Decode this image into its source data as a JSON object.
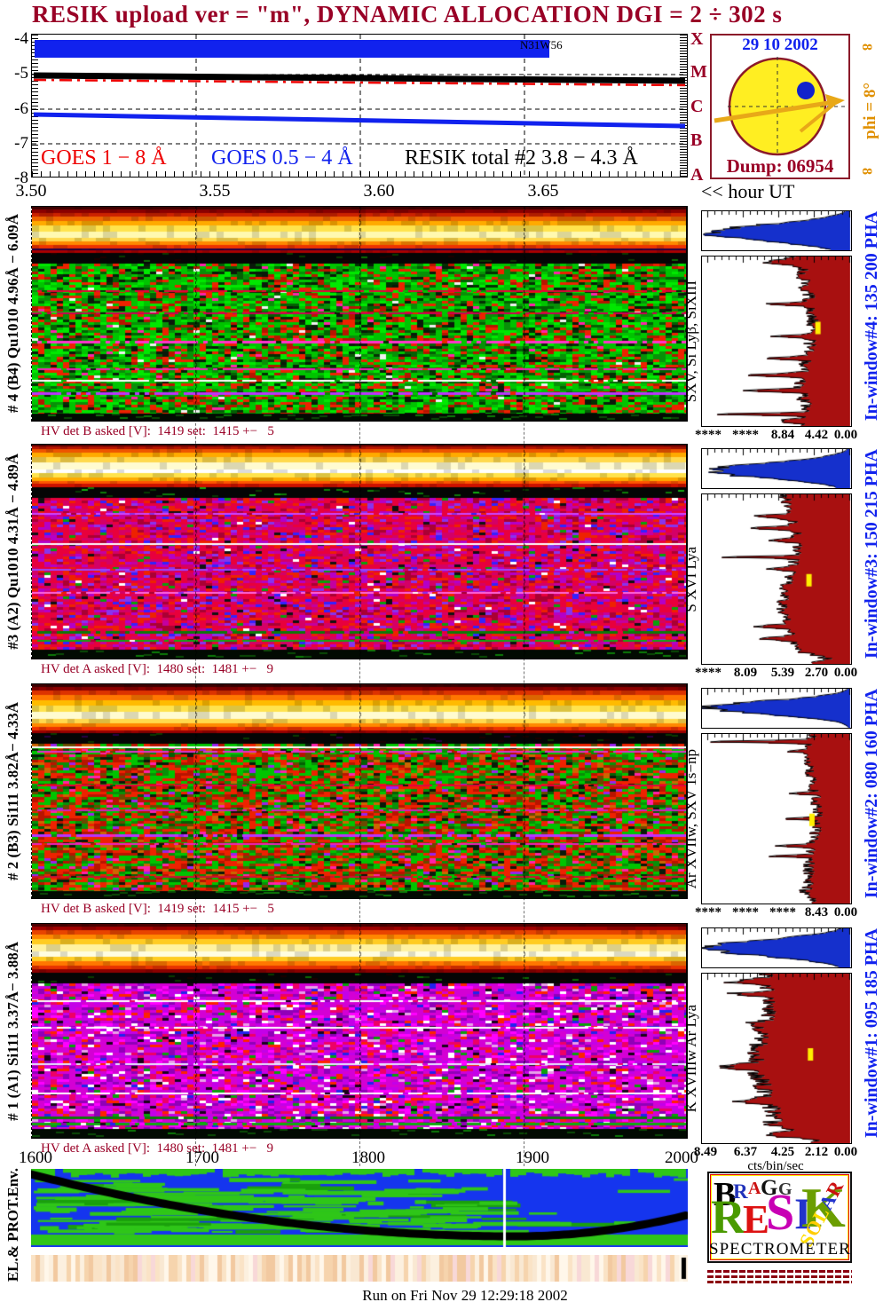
{
  "title": "RESIK upload ver = \"m\", DYNAMIC ALLOCATION  DGI =   2 ÷ 302 s",
  "colors": {
    "title_red": "#990026",
    "label_blue": "#1122ee",
    "hist_red": "#a81010",
    "hist_blue": "#1530cc",
    "accent_orange": "#e09000",
    "sun_yellow": "#ffee22"
  },
  "goes": {
    "y_labels": [
      "-4",
      "-5",
      "-6",
      "-7",
      "-8"
    ],
    "class_labels": [
      "X",
      "M",
      "C",
      "B",
      "A"
    ],
    "flare_label": "N31W56",
    "legend": [
      {
        "label": "GOES 1 − 8 Å",
        "color": "#ee0000"
      },
      {
        "label": "GOES 0.5 − 4 Å",
        "color": "#1122ee"
      },
      {
        "label": "RESIK total #2  3.8 − 4.3 Å",
        "color": "#000000"
      }
    ]
  },
  "time_axis": {
    "labels": [
      "3.50",
      "3.55",
      "3.60",
      "3.65"
    ],
    "arrow_label": "<< hour UT"
  },
  "solar": {
    "date": "29 10 2002",
    "dump": "Dump: 06954",
    "phi_label": "phi = 8°",
    "inf": "8"
  },
  "panels": [
    {
      "left_label": "# 4 (B4) Qu1010 4.96Å − 6.09Å",
      "hv_label": "HV det B asked [V]:  1419 set:  1415 +−   5",
      "species_label": "SXV, Si Lyβ, SiXIII",
      "window_label": "In-window#4:  135 200 PHA",
      "pha_values": [
        "****",
        "****",
        "8.84",
        "4.42",
        "0.00"
      ]
    },
    {
      "left_label": "#3 (A2) Qu1010  4.31Å − 4.89Å",
      "hv_label": "HV det A asked [V]:  1480 set:  1481 +−   9",
      "species_label": "S XVI Lya",
      "window_label": "In-window#3:  150 215 PHA",
      "pha_values": [
        "****",
        "8.09",
        "5.39",
        "2.70",
        "0.00"
      ]
    },
    {
      "left_label": "# 2 (B3) Si111  3.82Å− 4.33Å",
      "hv_label": "HV det B asked [V]:  1419 set:  1415 +−   5",
      "species_label": "Ar XVIIw,  SXV 1s−np",
      "window_label": "In-window#2:  080 160 PHA",
      "pha_values": [
        "****",
        "****",
        "****",
        "8.43",
        "0.00"
      ]
    },
    {
      "left_label": "# 1 (A1) Si111  3.37Å− 3.88Å",
      "hv_label": "HV det A asked [V]:  1480 set:  1481 +−   9",
      "species_label": "K XVIIIw  Ar Lya",
      "window_label": "In-window#1:  095 185 PHA",
      "pha_values": [
        "8.49",
        "6.37",
        "4.25",
        "2.12",
        "0.00"
      ]
    }
  ],
  "pha_unit": "cts/bin/sec",
  "bottom": {
    "left_label": "EL.& PROT.Env.",
    "x_labels": [
      "1600",
      "1700",
      "1800",
      "1900",
      "2000"
    ]
  },
  "logo": {
    "bragg": [
      "B",
      "R",
      "A",
      "G",
      "G"
    ],
    "resik": [
      "R",
      "E",
      "S",
      "I",
      "K"
    ],
    "solar": [
      "S",
      "O",
      "L",
      "A",
      "R"
    ],
    "spectrometer": "SPECTROMETER"
  },
  "footer": "Run on Fri Nov 29 12:29:18 2002",
  "chart_data": [
    {
      "type": "line",
      "title": "GOES X-ray flux and RESIK total rate vs time",
      "xlabel": "hour UT",
      "x_range": [
        3.5,
        3.7
      ],
      "ylim": [
        -8,
        -4
      ],
      "y_scale": "log10 flux, GOES classes A B C M X marked on right axis",
      "grid": "dashed horizontal at -5,-6,-7; dashed vertical at 3.55,3.60,3.65",
      "series": [
        {
          "name": "GOES 1 - 8 A",
          "color": "#ee0000",
          "style": "dash-dot",
          "x": [
            3.5,
            3.7
          ],
          "y": [
            -5.15,
            -5.28
          ]
        },
        {
          "name": "GOES 0.5 - 4 A",
          "color": "#1122ee",
          "style": "solid",
          "x": [
            3.5,
            3.7
          ],
          "y": [
            -6.22,
            -6.45
          ]
        },
        {
          "name": "RESIK total #2 3.8 - 4.3 A",
          "color": "#000000",
          "style": "solid",
          "x": [
            3.5,
            3.7
          ],
          "y": [
            -5.12,
            -5.25
          ]
        },
        {
          "name": "flare interval bar N31W56",
          "color": "#1122ee",
          "style": "bar",
          "x": [
            3.5,
            3.658
          ],
          "y": [
            -4.3,
            -4.3
          ]
        }
      ]
    },
    {
      "type": "heatmap",
      "name": "channel 4 spectrogram (B4 Qu1010)",
      "wavelength_range_A": [
        4.96,
        6.09
      ],
      "x_range_hour_UT": [
        3.5,
        3.7
      ],
      "description": "bright dark-red/orange/yellow continuum band at top, black gap, green speckle counts with red dots and magenta/white streak rows, black bottom edge"
    },
    {
      "type": "heatmap",
      "name": "channel 3 spectrogram (A2 Qu1010)",
      "wavelength_range_A": [
        4.31,
        4.89
      ],
      "x_range_hour_UT": [
        3.5,
        3.7
      ],
      "description": "yellow/white continuum band at top, crimson-magenta speckle body with violet streaks and one white horizontal line, green mottled bottom edge"
    },
    {
      "type": "heatmap",
      "name": "channel 2 spectrogram (B3 Si111)",
      "wavelength_range_A": [
        3.82,
        4.33
      ],
      "x_range_hour_UT": [
        3.5,
        3.7
      ],
      "description": "orange/yellow continuum band at top, mixed green and red speckle body with magenta streaks, black bottom edge"
    },
    {
      "type": "heatmap",
      "name": "channel 1 spectrogram (A1 Si111)",
      "wavelength_range_A": [
        3.37,
        3.88
      ],
      "x_range_hour_UT": [
        3.5,
        3.7
      ],
      "description": "red/orange/yellow continuum band at top, magenta-purple speckle body with white dashes, green then black bottom edge"
    },
    {
      "type": "histogram",
      "name": "PHA spectrum detector window #4",
      "window": [
        135,
        200
      ],
      "axis_values": [
        "****",
        "****",
        "8.84",
        "4.42",
        "0.00"
      ],
      "series": [
        "blue in-window profile",
        "dark-red full PHA distribution with line spikes"
      ]
    },
    {
      "type": "histogram",
      "name": "PHA spectrum detector window #3",
      "window": [
        150,
        215
      ],
      "axis_values": [
        "****",
        "8.09",
        "5.39",
        "2.70",
        "0.00"
      ],
      "series": [
        "blue in-window profile",
        "dark-red full PHA distribution with line spikes"
      ]
    },
    {
      "type": "histogram",
      "name": "PHA spectrum detector window #2",
      "window": [
        80,
        160
      ],
      "axis_values": [
        "****",
        "****",
        "****",
        "8.43",
        "0.00"
      ],
      "series": [
        "blue in-window profile",
        "dark-red full PHA distribution with strong top spike"
      ]
    },
    {
      "type": "histogram",
      "name": "PHA spectrum detector window #1",
      "window": [
        95,
        185
      ],
      "axis_values": [
        "8.49",
        "6.37",
        "4.25",
        "2.12",
        "0.00"
      ],
      "unit": "cts/bin/sec",
      "series": [
        "blue in-window profile",
        "broad ragged dark-red PHA distribution"
      ]
    },
    {
      "type": "heatmap",
      "name": "electron and proton environment",
      "x_ticks": [
        1600,
        1700,
        1800,
        1900,
        2000
      ],
      "description": "blue background with green bands/patches, thick black orbit curve dipping to minimum near 1890, white vertical marker line, pale tan strip below"
    }
  ]
}
